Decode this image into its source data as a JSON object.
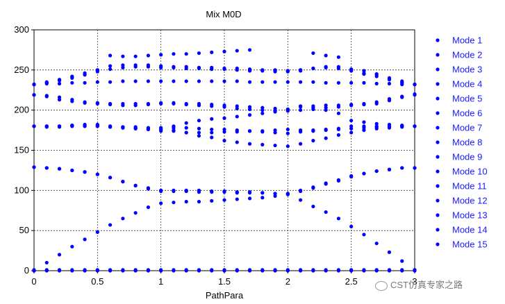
{
  "chart_data": {
    "type": "scatter",
    "title": "Mix M0D",
    "xlabel": "PathPara",
    "ylabel": "",
    "xlim": [
      0,
      3
    ],
    "ylim": [
      0,
      300
    ],
    "xticks": [
      "0",
      "0.5",
      "1",
      "1.5",
      "2",
      "2.5",
      "3"
    ],
    "yticks": [
      "0",
      "50",
      "100",
      "150",
      "200",
      "250",
      "300"
    ],
    "grid": true,
    "legend_position": "right",
    "color": "#0000ff",
    "x": [
      0,
      0.1,
      0.2,
      0.3,
      0.4,
      0.5,
      0.6,
      0.7,
      0.8,
      0.9,
      1.0,
      1.1,
      1.2,
      1.3,
      1.4,
      1.5,
      1.6,
      1.7,
      1.8,
      1.9,
      2.0,
      2.1,
      2.2,
      2.3,
      2.4,
      2.5,
      2.6,
      2.7,
      2.8,
      2.9,
      3.0
    ],
    "series": [
      {
        "name": "Mode 1",
        "values": [
          0,
          0,
          0,
          0,
          0,
          0,
          0,
          0,
          0,
          0,
          0,
          0,
          0,
          0,
          0,
          0,
          0,
          0,
          0,
          0,
          0,
          0,
          0,
          0,
          0,
          0,
          0,
          0,
          0,
          0,
          0
        ]
      },
      {
        "name": "Mode 2",
        "values": [
          0,
          10,
          20,
          30,
          39,
          48,
          57,
          65,
          72,
          79,
          84,
          85,
          86,
          86,
          87,
          88,
          89,
          90,
          91,
          93,
          95,
          88,
          80,
          73,
          65,
          55,
          45,
          34,
          23,
          12,
          1
        ]
      },
      {
        "name": "Mode 3",
        "values": [
          129,
          128,
          127,
          125,
          123,
          120,
          116,
          111,
          106,
          103,
          100,
          100,
          100,
          100,
          99,
          99,
          98,
          98,
          97,
          96,
          96,
          100,
          104,
          109,
          113,
          118,
          121,
          124,
          126,
          128,
          128
        ]
      },
      {
        "name": "Mode 4",
        "values": [
          180,
          180,
          180,
          180,
          180,
          180,
          180,
          179,
          179,
          178,
          178,
          178,
          178,
          177,
          176,
          176,
          175,
          174,
          173,
          172,
          171,
          173,
          174,
          175,
          177,
          180,
          180,
          180,
          180,
          180,
          180
        ]
      },
      {
        "name": "Mode 5",
        "values": [
          180,
          180,
          180,
          181,
          181,
          181,
          180,
          179,
          178,
          177,
          176,
          174,
          172,
          168,
          166,
          162,
          160,
          158,
          157,
          156,
          155,
          158,
          162,
          165,
          169,
          172,
          175,
          177,
          178,
          179,
          180
        ]
      },
      {
        "name": "Mode 6",
        "values": [
          180,
          180,
          180,
          181,
          182,
          182,
          179,
          178,
          177,
          176,
          174,
          180,
          184,
          187,
          189,
          190,
          192,
          194,
          196,
          198,
          201,
          205,
          203,
          200,
          196,
          187,
          185,
          183,
          182,
          181,
          180
        ]
      },
      {
        "name": "Mode 7",
        "values": [
          219,
          217,
          213,
          211,
          209,
          208,
          207,
          206,
          206,
          207,
          208,
          208,
          207,
          206,
          205,
          204,
          202,
          201,
          200,
          199,
          199,
          200,
          201,
          203,
          204,
          206,
          208,
          210,
          214,
          217,
          220
        ]
      },
      {
        "name": "Mode 8",
        "values": [
          232,
          233,
          233,
          234,
          234,
          235,
          235,
          236,
          236,
          236,
          236,
          236,
          236,
          236,
          236,
          236,
          236,
          235,
          235,
          235,
          235,
          235,
          235,
          234,
          234,
          234,
          234,
          233,
          233,
          232,
          232
        ]
      },
      {
        "name": "Mode 9",
        "values": [
          232,
          235,
          238,
          242,
          246,
          250,
          251,
          253,
          254,
          254,
          253,
          253,
          252,
          252,
          251,
          251,
          250,
          249,
          249,
          248,
          248,
          250,
          252,
          253,
          252,
          250,
          246,
          244,
          240,
          236,
          232
        ]
      },
      {
        "name": "Mode 10",
        "values": [
          232,
          234,
          237,
          240,
          244,
          248,
          255,
          256,
          256,
          256,
          255,
          254,
          254,
          253,
          253,
          252,
          252,
          251,
          250,
          249,
          249,
          250,
          252,
          254,
          254,
          251,
          249,
          245,
          239,
          234,
          232
        ]
      },
      {
        "name": "Mode 11",
        "values": [
          232,
          234,
          237,
          241,
          246,
          250,
          268,
          267,
          267,
          268,
          269,
          270,
          270,
          271,
          272,
          273,
          274,
          275,
          250,
          250,
          249,
          249,
          271,
          268,
          266,
          249,
          245,
          242,
          238,
          234,
          232
        ]
      },
      {
        "name": "Mode 12",
        "values": [
          219,
          218,
          216,
          213,
          210,
          209,
          208,
          208,
          208,
          208,
          209,
          209,
          208,
          208,
          207,
          206,
          205,
          204,
          203,
          202,
          201,
          204,
          205,
          206,
          206,
          207,
          207,
          208,
          212,
          216,
          219
        ]
      },
      {
        "name": "Mode 13",
        "values": [
          180,
          179,
          179,
          180,
          180,
          180,
          179,
          178,
          177,
          176,
          176,
          175,
          172,
          172,
          172,
          173,
          173,
          174,
          174,
          175,
          176,
          175,
          175,
          176,
          176,
          177,
          178,
          179,
          179,
          180,
          180
        ]
      },
      {
        "name": "Mode 14",
        "values": [
          129,
          128,
          127,
          125,
          123,
          120,
          116,
          111,
          106,
          102,
          99,
          99,
          99,
          98,
          98,
          98,
          97,
          97,
          97,
          96,
          96,
          99,
          103,
          108,
          112,
          117,
          121,
          124,
          126,
          128,
          128
        ]
      },
      {
        "name": "Mode 15",
        "values": [
          1,
          1,
          1,
          1,
          1,
          1,
          1,
          1,
          1,
          1,
          1,
          1,
          1,
          1,
          1,
          1,
          1,
          1,
          1,
          1,
          1,
          1,
          1,
          1,
          1,
          1,
          1,
          1,
          1,
          1,
          1
        ]
      }
    ]
  },
  "watermark": {
    "text": "CST仿真专家之路"
  }
}
